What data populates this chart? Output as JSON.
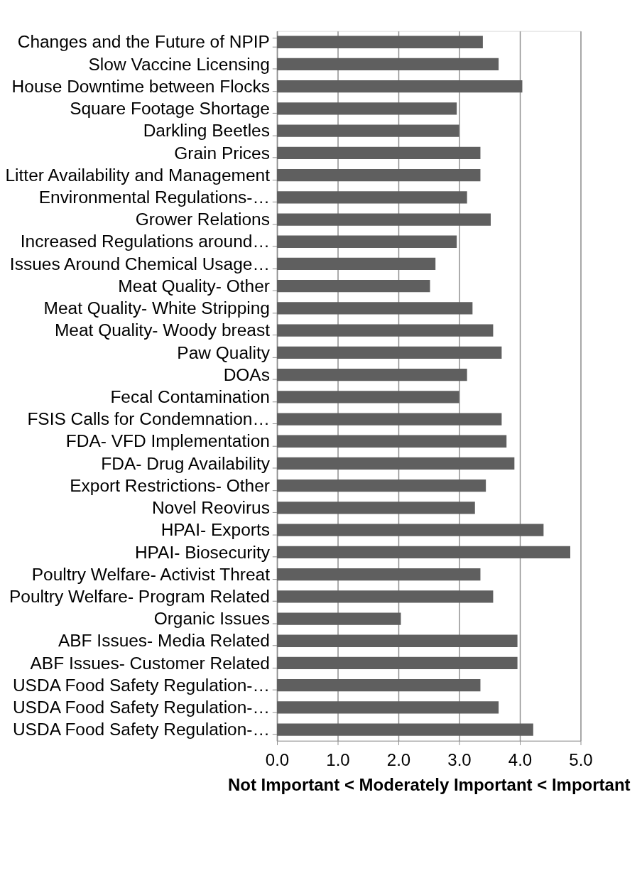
{
  "chart_data": {
    "type": "bar",
    "orientation": "horizontal",
    "xlabel": "Not Important  <  Moderately Important < Important",
    "categories": [
      "Changes and the Future of NPIP",
      "Slow Vaccine Licensing",
      "House Downtime between Flocks",
      "Square Footage Shortage",
      "Darkling Beetles",
      "Grain Prices",
      "Litter Availability and Management",
      "Environmental Regulations-…",
      "Grower Relations",
      "Increased Regulations around…",
      "Issues Around Chemical Usage…",
      "Meat Quality- Other",
      "Meat Quality- White Stripping",
      "Meat Quality- Woody breast",
      "Paw Quality",
      "DOAs",
      "Fecal Contamination",
      "FSIS Calls for Condemnation…",
      "FDA- VFD Implementation",
      "FDA- Drug Availability",
      "Export Restrictions- Other",
      "Novel Reovirus",
      "HPAI- Exports",
      "HPAI- Biosecurity",
      "Poultry Welfare- Activist Threat",
      "Poultry Welfare- Program Related",
      "Organic Issues",
      "ABF Issues- Media Related",
      "ABF Issues- Customer Related",
      "USDA Food Safety Regulation-…",
      "USDA Food Safety Regulation-…",
      "USDA Food Safety Regulation-…"
    ],
    "values": [
      3.39,
      3.65,
      4.04,
      2.96,
      3.0,
      3.35,
      3.35,
      3.13,
      3.52,
      2.96,
      2.61,
      2.52,
      3.22,
      3.56,
      3.7,
      3.13,
      3.0,
      3.7,
      3.78,
      3.91,
      3.44,
      3.26,
      4.39,
      4.83,
      3.35,
      3.56,
      2.04,
      3.96,
      3.96,
      3.35,
      3.65,
      4.22
    ],
    "color": "#5f5f5f",
    "xlim": [
      0,
      5
    ],
    "xticks": [
      {
        "value": 0,
        "label": "0.0"
      },
      {
        "value": 1,
        "label": "1.0"
      },
      {
        "value": 2,
        "label": "2.0"
      },
      {
        "value": 3,
        "label": "3.0"
      },
      {
        "value": 4,
        "label": "4.0"
      },
      {
        "value": 5,
        "label": "5.0"
      }
    ],
    "grid": "x"
  }
}
